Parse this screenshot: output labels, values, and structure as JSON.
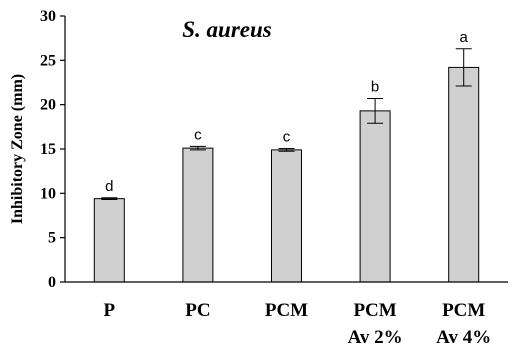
{
  "chart_data": {
    "type": "bar",
    "title": "S. aureus",
    "ylabel": "Inhibitory Zone (mm)",
    "xlabel": "",
    "ylim": [
      0,
      30
    ],
    "yticks": [
      0,
      5,
      10,
      15,
      20,
      25,
      30
    ],
    "categories": [
      [
        "P"
      ],
      [
        "PC"
      ],
      [
        "PCM"
      ],
      [
        "PCM",
        "Av 2%"
      ],
      [
        "PCM",
        "Av 4%"
      ]
    ],
    "values": [
      9.4,
      15.1,
      14.9,
      19.3,
      24.2
    ],
    "errors": [
      0.1,
      0.2,
      0.15,
      1.4,
      2.1
    ],
    "significance": [
      "d",
      "c",
      "c",
      "b",
      "a"
    ],
    "bar_color": "#d0d0d0",
    "grid": false,
    "legend": "none"
  }
}
